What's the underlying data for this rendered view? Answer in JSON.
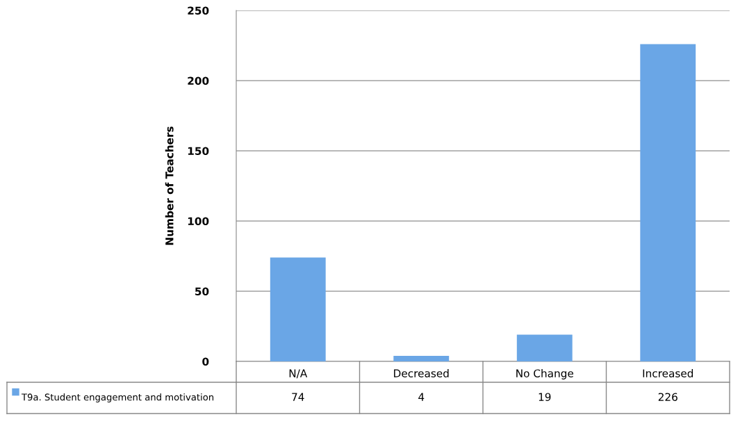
{
  "chart_data": {
    "type": "bar",
    "ylabel": "Number of Teachers",
    "categories": [
      "N/A",
      "Decreased",
      "No Change",
      "Increased"
    ],
    "series": [
      {
        "name": "T9a. Student engagement and motivation",
        "color": "#6aa6e6",
        "values": [
          74,
          4,
          19,
          226
        ]
      }
    ],
    "ylim": [
      0,
      250
    ],
    "yticks": [
      0,
      50,
      100,
      150,
      200,
      250
    ],
    "grid": "y",
    "legend": "bottom",
    "data_labels": true
  }
}
